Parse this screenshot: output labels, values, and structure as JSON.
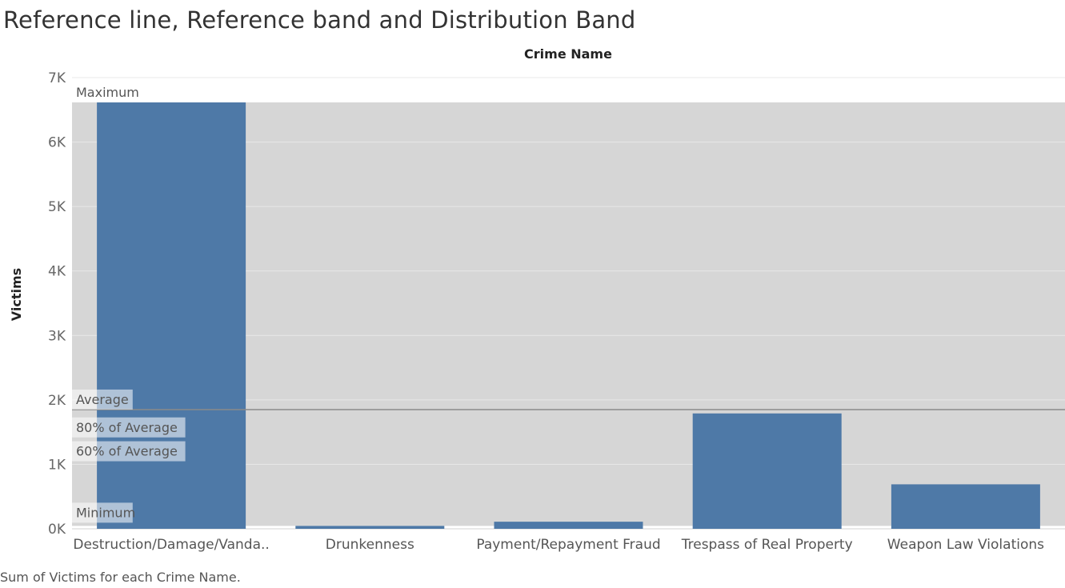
{
  "header": {
    "title": "Reference line, Reference band and Distribution Band"
  },
  "footer": {
    "caption": "Sum of Victims for each Crime Name."
  },
  "chart_data": {
    "type": "bar",
    "title": "Reference line, Reference band and Distribution Band",
    "xlabel": "Crime Name",
    "ylabel": "Victims",
    "categories": [
      "Destruction/Damage/Vanda..",
      "Drunkenness",
      "Payment/Repayment Fraud",
      "Trespass of Real Property",
      "Weapon Law Violations"
    ],
    "values": [
      6615,
      45,
      110,
      1790,
      690
    ],
    "ylim": [
      0,
      7000
    ],
    "ticks": [
      {
        "value": 0,
        "label": "0K"
      },
      {
        "value": 1000,
        "label": "1K"
      },
      {
        "value": 2000,
        "label": "2K"
      },
      {
        "value": 3000,
        "label": "3K"
      },
      {
        "value": 4000,
        "label": "4K"
      },
      {
        "value": 5000,
        "label": "5K"
      },
      {
        "value": 6000,
        "label": "6K"
      },
      {
        "value": 7000,
        "label": "7K"
      }
    ],
    "grid": true,
    "reference_band": {
      "from": 45,
      "to": 6615,
      "from_label": "Minimum",
      "to_label": "Maximum"
    },
    "reference_line": {
      "value": 1850,
      "label": "Average"
    },
    "distribution_band": [
      {
        "value": 1480,
        "label": "80% of Average"
      },
      {
        "value": 1110,
        "label": "60% of Average"
      }
    ],
    "colors": {
      "bar": "#4e79a7",
      "band": "#d6d6d6",
      "reference_line": "#8a8a8a",
      "grid": "#e8e8e8"
    }
  }
}
